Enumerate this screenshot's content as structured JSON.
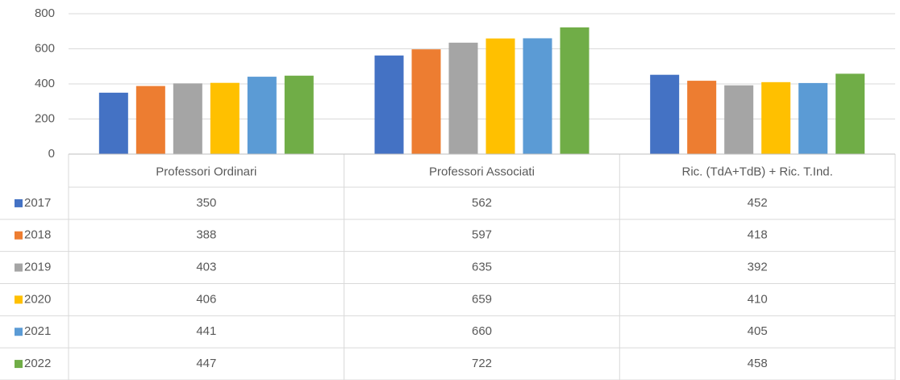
{
  "chart_data": {
    "type": "bar",
    "categories": [
      "Professori Ordinari",
      "Professori Associati",
      "Ric. (TdA+TdB) + Ric. T.Ind."
    ],
    "series": [
      {
        "name": "2017",
        "color": "#4472c4",
        "values": [
          350,
          562,
          452
        ]
      },
      {
        "name": "2018",
        "color": "#ed7d31",
        "values": [
          388,
          597,
          418
        ]
      },
      {
        "name": "2019",
        "color": "#a5a5a5",
        "values": [
          403,
          635,
          392
        ]
      },
      {
        "name": "2020",
        "color": "#ffc000",
        "values": [
          406,
          659,
          410
        ]
      },
      {
        "name": "2021",
        "color": "#5b9bd5",
        "values": [
          441,
          660,
          405
        ]
      },
      {
        "name": "2022",
        "color": "#70ad47",
        "values": [
          447,
          722,
          458
        ]
      }
    ],
    "ylim": [
      0,
      800
    ],
    "yticks": [
      0,
      200,
      400,
      600,
      800
    ],
    "grid": true
  }
}
